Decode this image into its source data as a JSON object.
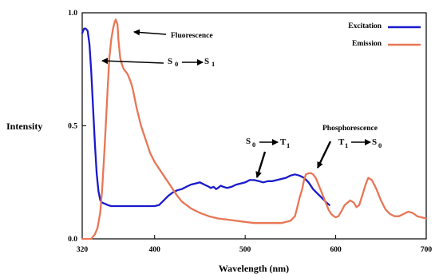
{
  "chart_data": {
    "type": "line",
    "xlabel": "Wavelength (nm)",
    "ylabel": "Intensity",
    "xlim": [
      320,
      700
    ],
    "ylim": [
      0,
      1
    ],
    "x_ticks": [
      {
        "value": 320,
        "label": "320"
      },
      {
        "value": 400,
        "label": "400"
      },
      {
        "value": 500,
        "label": "500"
      },
      {
        "value": 600,
        "label": "600"
      },
      {
        "value": 700,
        "label": "700"
      }
    ],
    "y_ticks": [
      {
        "value": 0,
        "label": "0.0"
      },
      {
        "value": 0.5,
        "label": "0.5"
      },
      {
        "value": 1,
        "label": "1.0"
      }
    ],
    "grid": false,
    "legend_position": "top-right",
    "series": [
      {
        "name": "Excitation",
        "color": "#1a1acc",
        "x": [
          320,
          322,
          324,
          326,
          328,
          330,
          332,
          334,
          336,
          338,
          340,
          342,
          345,
          348,
          352,
          356,
          360,
          370,
          380,
          390,
          400,
          405,
          410,
          415,
          420,
          425,
          430,
          435,
          440,
          445,
          450,
          455,
          460,
          462,
          465,
          468,
          470,
          473,
          476,
          480,
          485,
          490,
          495,
          500,
          505,
          510,
          515,
          520,
          525,
          530,
          535,
          540,
          545,
          550,
          555,
          560,
          565,
          570,
          575,
          580,
          585,
          590,
          593
        ],
        "y": [
          0.91,
          0.93,
          0.93,
          0.92,
          0.86,
          0.74,
          0.58,
          0.42,
          0.29,
          0.21,
          0.17,
          0.16,
          0.155,
          0.15,
          0.145,
          0.145,
          0.145,
          0.145,
          0.145,
          0.145,
          0.145,
          0.15,
          0.17,
          0.19,
          0.205,
          0.215,
          0.22,
          0.23,
          0.24,
          0.245,
          0.25,
          0.24,
          0.23,
          0.225,
          0.23,
          0.22,
          0.225,
          0.235,
          0.23,
          0.225,
          0.23,
          0.24,
          0.245,
          0.25,
          0.26,
          0.26,
          0.255,
          0.25,
          0.255,
          0.255,
          0.26,
          0.265,
          0.27,
          0.28,
          0.285,
          0.28,
          0.27,
          0.25,
          0.22,
          0.2,
          0.18,
          0.16,
          0.15
        ]
      },
      {
        "name": "Emission",
        "color": "#e87656",
        "x": [
          320,
          325,
          330,
          334,
          337,
          340,
          342,
          344,
          346,
          348,
          350,
          352,
          354,
          356,
          357,
          359,
          360,
          362,
          364,
          366,
          368,
          370,
          372,
          374,
          376,
          378,
          380,
          385,
          390,
          395,
          400,
          405,
          410,
          415,
          420,
          425,
          430,
          440,
          450,
          460,
          470,
          480,
          490,
          500,
          510,
          520,
          540,
          550,
          555,
          557,
          560,
          563,
          565,
          567,
          570,
          573,
          575,
          578,
          580,
          583,
          586,
          589,
          592,
          595,
          598,
          600,
          603,
          606,
          610,
          613,
          616,
          620,
          623,
          626,
          630,
          633,
          636,
          640,
          645,
          650,
          655,
          660,
          665,
          670,
          675,
          680,
          685,
          690,
          695,
          700
        ],
        "y": [
          0.0,
          0.0,
          0.0,
          0.02,
          0.05,
          0.12,
          0.22,
          0.35,
          0.5,
          0.66,
          0.8,
          0.88,
          0.93,
          0.96,
          0.97,
          0.95,
          0.88,
          0.8,
          0.77,
          0.75,
          0.74,
          0.73,
          0.71,
          0.69,
          0.66,
          0.62,
          0.58,
          0.5,
          0.44,
          0.38,
          0.34,
          0.31,
          0.28,
          0.25,
          0.22,
          0.19,
          0.165,
          0.135,
          0.115,
          0.1,
          0.09,
          0.085,
          0.08,
          0.075,
          0.07,
          0.07,
          0.07,
          0.08,
          0.1,
          0.13,
          0.18,
          0.22,
          0.26,
          0.285,
          0.29,
          0.29,
          0.285,
          0.27,
          0.25,
          0.22,
          0.19,
          0.16,
          0.13,
          0.11,
          0.1,
          0.095,
          0.1,
          0.12,
          0.15,
          0.16,
          0.17,
          0.16,
          0.14,
          0.15,
          0.2,
          0.24,
          0.27,
          0.26,
          0.22,
          0.17,
          0.13,
          0.11,
          0.1,
          0.1,
          0.11,
          0.12,
          0.115,
          0.1,
          0.095,
          0.09
        ]
      }
    ],
    "annotations": [
      {
        "id": "fluorescence",
        "text": "Fluorescence"
      },
      {
        "id": "phosphorescence",
        "text": "Phosphorescence"
      }
    ],
    "transitions": [
      {
        "id": "s0-s1",
        "from_sym": "S",
        "from_sub": "0",
        "to_sym": "S",
        "to_sub": "1"
      },
      {
        "id": "s0-t1",
        "from_sym": "S",
        "from_sub": "0",
        "to_sym": "T",
        "to_sub": "1"
      },
      {
        "id": "t1-s0",
        "from_sym": "T",
        "from_sub": "1",
        "to_sym": "S",
        "to_sub": "0"
      }
    ]
  }
}
